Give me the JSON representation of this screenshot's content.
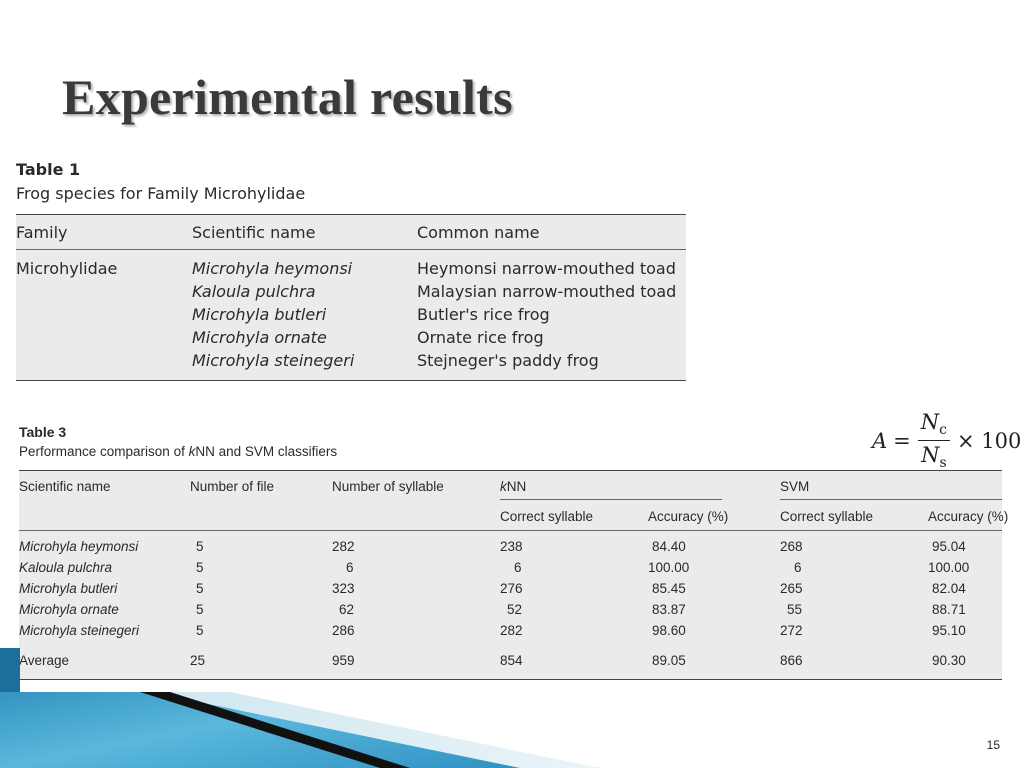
{
  "slide": {
    "title": "Experimental results",
    "page_number": "15"
  },
  "table1": {
    "number": "Table 1",
    "caption": "Frog species for Family Microhylidae",
    "headers": [
      "Family",
      "Scientific name",
      "Common name"
    ],
    "family": "Microhylidae",
    "rows": [
      {
        "scientific": "Microhyla heymonsi",
        "common": "Heymonsi narrow-mouthed toad"
      },
      {
        "scientific": "Kaloula pulchra",
        "common": "Malaysian narrow-mouthed toad"
      },
      {
        "scientific": "Microhyla butleri",
        "common": "Butler's rice frog"
      },
      {
        "scientific": "Microhyla ornate",
        "common": "Ornate rice frog"
      },
      {
        "scientific": "Microhyla steinegeri",
        "common": "Stejneger's paddy frog"
      }
    ]
  },
  "formula": {
    "lhs": "A",
    "equals": "=",
    "numerator": "N",
    "numerator_sub": "c",
    "denominator": "N",
    "denominator_sub": "s",
    "times": "× 100"
  },
  "table3": {
    "number": "Table 3",
    "caption_pre": "Performance comparison of ",
    "caption_k": "k",
    "caption_post": "NN and SVM classifiers",
    "headers": {
      "scientific": "Scientific name",
      "files": "Number of file",
      "syllables": "Number of syllable",
      "knn_k": "k",
      "knn_rest": "NN",
      "svm": "SVM",
      "knn_correct": "Correct syllable",
      "knn_accuracy": "Accuracy (%)",
      "svm_correct": "Correct syllable",
      "svm_accuracy": "Accuracy (%)"
    },
    "rows": [
      {
        "name": "Microhyla heymonsi",
        "files": "5",
        "syllables": "282",
        "knn_correct": "238",
        "knn_acc": "84.40",
        "svm_correct": "268",
        "svm_acc": "95.04"
      },
      {
        "name": "Kaloula pulchra",
        "files": "5",
        "syllables": "6",
        "knn_correct": "6",
        "knn_acc": "100.00",
        "svm_correct": "6",
        "svm_acc": "100.00"
      },
      {
        "name": "Microhyla butleri",
        "files": "5",
        "syllables": "323",
        "knn_correct": "276",
        "knn_acc": "85.45",
        "svm_correct": "265",
        "svm_acc": "82.04"
      },
      {
        "name": "Microhyla ornate",
        "files": "5",
        "syllables": "62",
        "knn_correct": "52",
        "knn_acc": "83.87",
        "svm_correct": "55",
        "svm_acc": "88.71"
      },
      {
        "name": "Microhyla steinegeri",
        "files": "5",
        "syllables": "286",
        "knn_correct": "282",
        "knn_acc": "98.60",
        "svm_correct": "272",
        "svm_acc": "95.10"
      }
    ],
    "average": {
      "name": "Average",
      "files": "25",
      "syllables": "959",
      "knn_correct": "854",
      "knn_acc": "89.05",
      "svm_correct": "866",
      "svm_acc": "90.30"
    }
  }
}
